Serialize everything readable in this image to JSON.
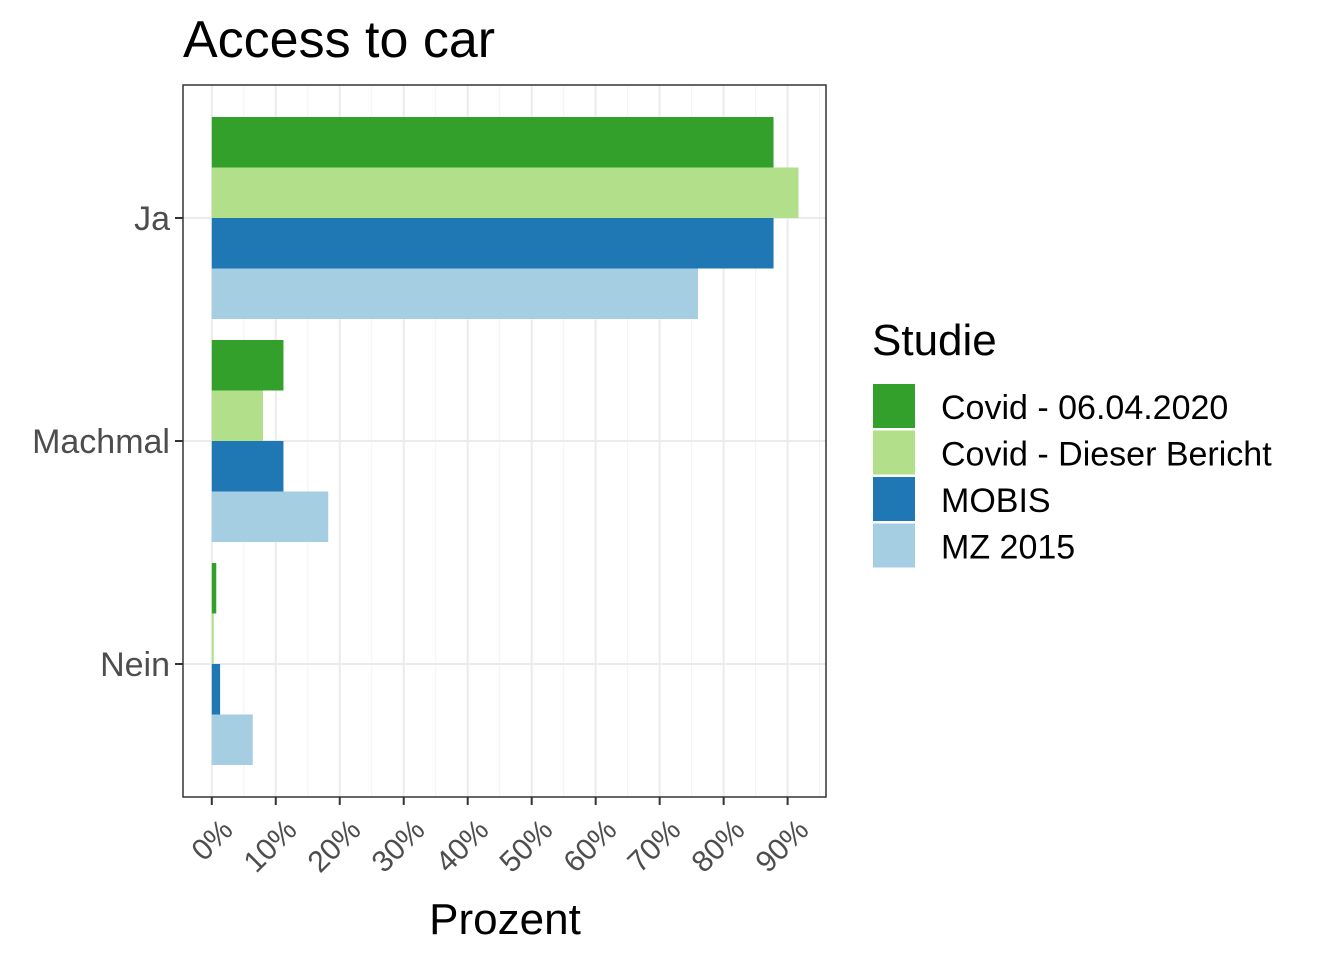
{
  "chart_data": {
    "type": "bar",
    "orientation": "horizontal",
    "title": "Access to car",
    "xlabel": "Prozent",
    "ylabel": "",
    "categories": [
      "Ja",
      "Machmal",
      "Nein"
    ],
    "series": [
      {
        "name": "Covid - 06.04.2020",
        "color": "#33a02c",
        "values": [
          87.8,
          11.2,
          0.7
        ]
      },
      {
        "name": "Covid - Dieser Bericht",
        "color": "#b2df8a",
        "values": [
          91.7,
          8.0,
          0.3
        ]
      },
      {
        "name": "MOBIS",
        "color": "#1f78b4",
        "values": [
          87.8,
          11.2,
          1.3
        ]
      },
      {
        "name": "MZ 2015",
        "color": "#a6cee3",
        "values": [
          76.0,
          18.2,
          6.4
        ]
      }
    ],
    "xlim": [
      -4.5,
      96.0
    ],
    "xticks": [
      0,
      10,
      20,
      30,
      40,
      50,
      60,
      70,
      80,
      90
    ],
    "xtick_labels": [
      "0%",
      "10%",
      "20%",
      "30%",
      "40%",
      "50%",
      "60%",
      "70%",
      "80%",
      "90%"
    ],
    "grid": true,
    "legend": {
      "title": "Studie",
      "position": "right"
    }
  }
}
